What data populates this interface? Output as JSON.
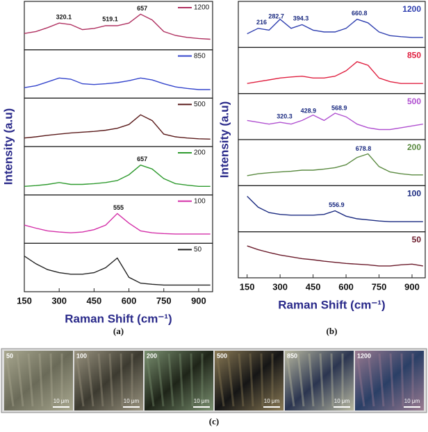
{
  "chart_data": [
    {
      "type": "line",
      "caption": "(a)",
      "xlabel": "Raman Shift (cm⁻¹)",
      "ylabel": "Intensity (a.u)",
      "xlim": [
        150,
        960
      ],
      "xticks": [
        150,
        300,
        450,
        600,
        750,
        900
      ],
      "ylim": [
        0,
        1
      ],
      "legend": "line-sample",
      "x": [
        150,
        200,
        250,
        300,
        350,
        400,
        450,
        500,
        550,
        600,
        650,
        700,
        750,
        800,
        850,
        900,
        950
      ],
      "series": [
        {
          "name": "1200",
          "color": "#b03060",
          "peaks": [
            320.1,
            519.1,
            657
          ],
          "values": [
            0.35,
            0.4,
            0.5,
            0.62,
            0.58,
            0.45,
            0.48,
            0.55,
            0.55,
            0.62,
            0.85,
            0.7,
            0.4,
            0.3,
            0.25,
            0.22,
            0.2
          ]
        },
        {
          "name": "850",
          "color": "#3344cc",
          "peaks": [],
          "values": [
            0.2,
            0.25,
            0.35,
            0.45,
            0.42,
            0.3,
            0.28,
            0.3,
            0.33,
            0.38,
            0.45,
            0.4,
            0.3,
            0.22,
            0.18,
            0.15,
            0.15
          ]
        },
        {
          "name": "500",
          "color": "#5a1a1a",
          "peaks": [],
          "values": [
            0.15,
            0.18,
            0.22,
            0.25,
            0.28,
            0.3,
            0.32,
            0.35,
            0.4,
            0.5,
            0.75,
            0.6,
            0.25,
            0.18,
            0.15,
            0.13,
            0.12
          ]
        },
        {
          "name": "200",
          "color": "#2e9a2e",
          "peaks": [
            657
          ],
          "values": [
            0.15,
            0.17,
            0.2,
            0.25,
            0.2,
            0.2,
            0.22,
            0.25,
            0.3,
            0.45,
            0.7,
            0.6,
            0.35,
            0.22,
            0.18,
            0.15,
            0.15
          ]
        },
        {
          "name": "100",
          "color": "#d42fa8",
          "peaks": [
            555
          ],
          "values": [
            0.4,
            0.32,
            0.25,
            0.22,
            0.2,
            0.22,
            0.28,
            0.4,
            0.7,
            0.45,
            0.25,
            0.2,
            0.18,
            0.17,
            0.17,
            0.17,
            0.17
          ]
        },
        {
          "name": "50",
          "color": "#222222",
          "peaks": [],
          "values": [
            0.85,
            0.65,
            0.5,
            0.42,
            0.38,
            0.38,
            0.42,
            0.55,
            0.8,
            0.3,
            0.15,
            0.12,
            0.1,
            0.1,
            0.1,
            0.1,
            0.1
          ]
        }
      ]
    },
    {
      "type": "line",
      "caption": "(b)",
      "xlabel": "Raman Shift (cm⁻¹)",
      "ylabel": "Intensity (a.u)",
      "xlim": [
        110,
        960
      ],
      "xticks": [
        150,
        300,
        450,
        600,
        750,
        900
      ],
      "ylim": [
        0,
        1
      ],
      "legend": "colored-text",
      "x": [
        150,
        200,
        250,
        300,
        350,
        400,
        450,
        500,
        550,
        600,
        650,
        700,
        750,
        800,
        850,
        900,
        950
      ],
      "series": [
        {
          "name": "1200",
          "color": "#3040b0",
          "peaks": [
            216,
            282.7,
            394.3,
            660.8
          ],
          "values": [
            0.3,
            0.45,
            0.4,
            0.7,
            0.45,
            0.55,
            0.4,
            0.35,
            0.35,
            0.45,
            0.7,
            0.6,
            0.35,
            0.25,
            0.22,
            0.2,
            0.2
          ]
        },
        {
          "name": "850",
          "color": "#e02040",
          "peaks": [],
          "values": [
            0.2,
            0.25,
            0.3,
            0.35,
            0.38,
            0.4,
            0.35,
            0.35,
            0.4,
            0.55,
            0.8,
            0.7,
            0.35,
            0.25,
            0.2,
            0.2,
            0.2
          ]
        },
        {
          "name": "500",
          "color": "#b050d0",
          "peaks": [
            320.3,
            428.9,
            568.9
          ],
          "values": [
            0.45,
            0.4,
            0.35,
            0.4,
            0.35,
            0.45,
            0.6,
            0.45,
            0.65,
            0.55,
            0.35,
            0.25,
            0.2,
            0.2,
            0.25,
            0.3,
            0.35
          ]
        },
        {
          "name": "200",
          "color": "#5a8a40",
          "peaks": [
            678.8
          ],
          "values": [
            0.2,
            0.25,
            0.28,
            0.3,
            0.32,
            0.35,
            0.35,
            0.38,
            0.42,
            0.5,
            0.7,
            0.8,
            0.45,
            0.3,
            0.25,
            0.22,
            0.22
          ]
        },
        {
          "name": "100",
          "color": "#1a2a80",
          "peaks": [
            556.9
          ],
          "values": [
            0.9,
            0.6,
            0.45,
            0.4,
            0.38,
            0.38,
            0.38,
            0.4,
            0.5,
            0.35,
            0.28,
            0.25,
            0.22,
            0.2,
            0.2,
            0.2,
            0.2
          ]
        },
        {
          "name": "50",
          "color": "#6a1a2a",
          "peaks": [],
          "values": [
            0.8,
            0.7,
            0.62,
            0.55,
            0.5,
            0.45,
            0.42,
            0.38,
            0.35,
            0.32,
            0.3,
            0.28,
            0.25,
            0.25,
            0.28,
            0.3,
            0.25
          ]
        }
      ]
    }
  ],
  "micrographs": {
    "caption": "(c)",
    "panels": [
      {
        "label": "50",
        "scale": "10 μm"
      },
      {
        "label": "100",
        "scale": "10 μm"
      },
      {
        "label": "200",
        "scale": "10 μm"
      },
      {
        "label": "500",
        "scale": "10 μm"
      },
      {
        "label": "850",
        "scale": "10 μm"
      },
      {
        "label": "1200",
        "scale": "10 μm"
      }
    ]
  }
}
